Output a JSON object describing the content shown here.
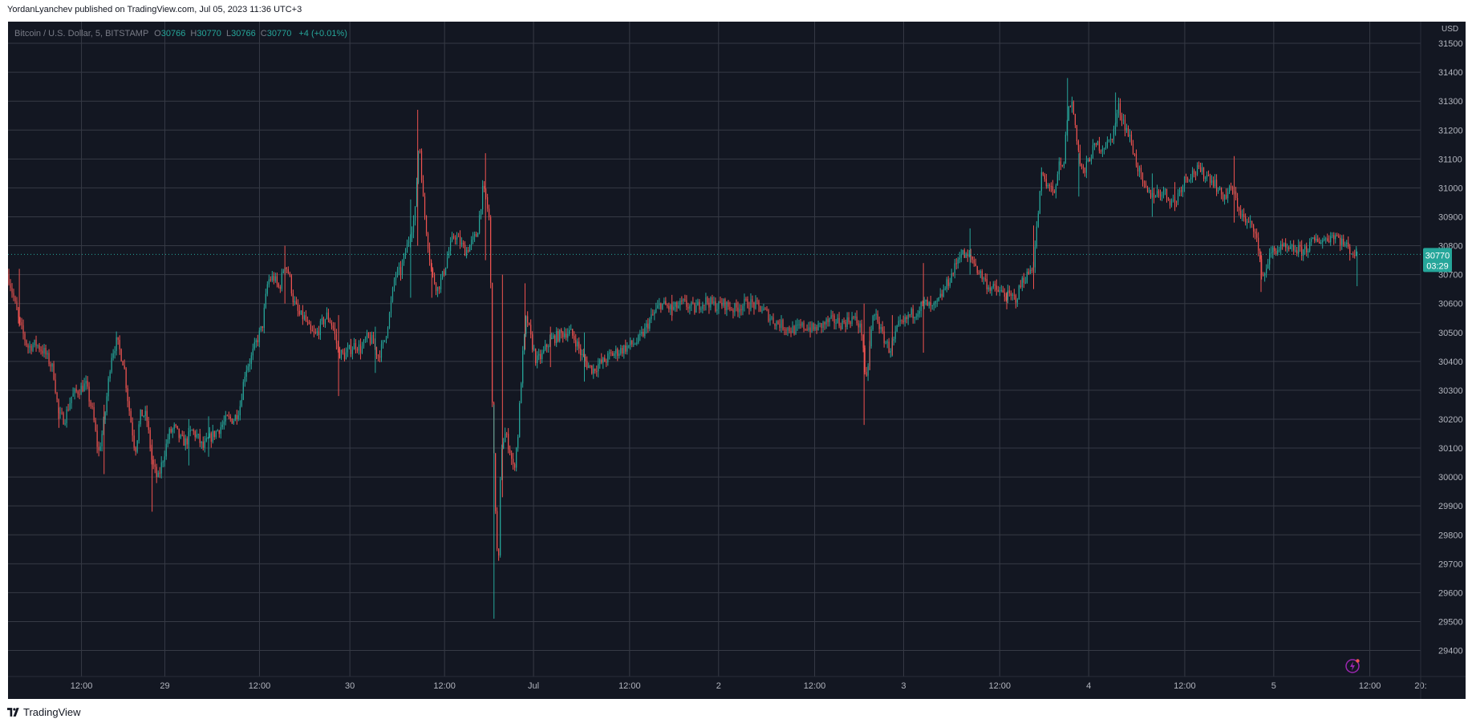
{
  "header": {
    "published": "YordanLyanchev published on TradingView.com, Jul 05, 2023 11:36 UTC+3"
  },
  "legend": {
    "symbol": "Bitcoin / U.S. Dollar, 5, BITSTAMP",
    "o_label": "O",
    "o_value": "30766",
    "h_label": "H",
    "h_value": "30770",
    "l_label": "L",
    "l_value": "30766",
    "c_label": "C",
    "c_value": "30770",
    "change": "+4 (+0.01%)"
  },
  "price_tag": {
    "price": "30770",
    "countdown": "03:29"
  },
  "footer": {
    "brand": "TradingView"
  },
  "colors": {
    "background": "#131722",
    "up": "#26a69a",
    "down": "#ef5350",
    "grid": "#363a45",
    "axis_text": "#b2b5be"
  },
  "chart_data": {
    "type": "candlestick",
    "currency": "USD",
    "ylim": [
      29310,
      31575
    ],
    "y_ticks": [
      29400,
      29500,
      29600,
      29700,
      29800,
      29900,
      30000,
      30100,
      30200,
      30300,
      30400,
      30500,
      30600,
      30700,
      30800,
      30900,
      31000,
      31100,
      31200,
      31300,
      31400,
      31500
    ],
    "x_ticks": [
      "12:00",
      "29",
      "12:00",
      "30",
      "12:00",
      "Jul",
      "12:00",
      "2",
      "12:00",
      "3",
      "12:00",
      "4",
      "12:00",
      "5",
      "12:00",
      "20:"
    ],
    "x_tick_pos": [
      0.052,
      0.111,
      0.178,
      0.242,
      0.309,
      0.372,
      0.44,
      0.503,
      0.571,
      0.634,
      0.702,
      0.765,
      0.833,
      0.896,
      0.964,
      1.0
    ],
    "last_price": 30770,
    "path": [
      [
        0.0,
        30700
      ],
      [
        0.004,
        30620
      ],
      [
        0.008,
        30530
      ],
      [
        0.014,
        30450
      ],
      [
        0.02,
        30460
      ],
      [
        0.026,
        30430
      ],
      [
        0.032,
        30370
      ],
      [
        0.036,
        30210
      ],
      [
        0.04,
        30200
      ],
      [
        0.045,
        30280
      ],
      [
        0.05,
        30300
      ],
      [
        0.055,
        30320
      ],
      [
        0.06,
        30220
      ],
      [
        0.064,
        30080
      ],
      [
        0.068,
        30190
      ],
      [
        0.073,
        30420
      ],
      [
        0.077,
        30470
      ],
      [
        0.082,
        30390
      ],
      [
        0.085,
        30260
      ],
      [
        0.09,
        30090
      ],
      [
        0.094,
        30220
      ],
      [
        0.098,
        30210
      ],
      [
        0.102,
        30050
      ],
      [
        0.106,
        29990
      ],
      [
        0.11,
        30070
      ],
      [
        0.114,
        30150
      ],
      [
        0.118,
        30170
      ],
      [
        0.122,
        30130
      ],
      [
        0.126,
        30120
      ],
      [
        0.13,
        30160
      ],
      [
        0.134,
        30140
      ],
      [
        0.138,
        30100
      ],
      [
        0.142,
        30130
      ],
      [
        0.146,
        30150
      ],
      [
        0.15,
        30170
      ],
      [
        0.155,
        30200
      ],
      [
        0.16,
        30200
      ],
      [
        0.164,
        30240
      ],
      [
        0.168,
        30370
      ],
      [
        0.172,
        30410
      ],
      [
        0.176,
        30470
      ],
      [
        0.18,
        30520
      ],
      [
        0.184,
        30680
      ],
      [
        0.188,
        30690
      ],
      [
        0.192,
        30650
      ],
      [
        0.196,
        30740
      ],
      [
        0.199,
        30700
      ],
      [
        0.202,
        30610
      ],
      [
        0.206,
        30560
      ],
      [
        0.21,
        30550
      ],
      [
        0.214,
        30500
      ],
      [
        0.218,
        30490
      ],
      [
        0.222,
        30530
      ],
      [
        0.226,
        30560
      ],
      [
        0.23,
        30520
      ],
      [
        0.234,
        30430
      ],
      [
        0.238,
        30420
      ],
      [
        0.242,
        30440
      ],
      [
        0.246,
        30460
      ],
      [
        0.25,
        30440
      ],
      [
        0.254,
        30480
      ],
      [
        0.258,
        30470
      ],
      [
        0.262,
        30420
      ],
      [
        0.266,
        30460
      ],
      [
        0.27,
        30560
      ],
      [
        0.274,
        30700
      ],
      [
        0.278,
        30710
      ],
      [
        0.282,
        30790
      ],
      [
        0.285,
        30850
      ],
      [
        0.288,
        30900
      ],
      [
        0.291,
        31180
      ],
      [
        0.294,
        30950
      ],
      [
        0.297,
        30820
      ],
      [
        0.3,
        30700
      ],
      [
        0.304,
        30650
      ],
      [
        0.308,
        30700
      ],
      [
        0.312,
        30780
      ],
      [
        0.316,
        30840
      ],
      [
        0.32,
        30810
      ],
      [
        0.324,
        30780
      ],
      [
        0.328,
        30810
      ],
      [
        0.332,
        30840
      ],
      [
        0.336,
        30990
      ],
      [
        0.338,
        30970
      ],
      [
        0.341,
        30880
      ],
      [
        0.343,
        30200
      ],
      [
        0.345,
        29900
      ],
      [
        0.347,
        29640
      ],
      [
        0.349,
        30100
      ],
      [
        0.352,
        30150
      ],
      [
        0.355,
        30100
      ],
      [
        0.358,
        30020
      ],
      [
        0.361,
        30150
      ],
      [
        0.364,
        30400
      ],
      [
        0.367,
        30560
      ],
      [
        0.37,
        30480
      ],
      [
        0.374,
        30400
      ],
      [
        0.378,
        30420
      ],
      [
        0.382,
        30460
      ],
      [
        0.386,
        30480
      ],
      [
        0.39,
        30490
      ],
      [
        0.394,
        30500
      ],
      [
        0.398,
        30500
      ],
      [
        0.402,
        30470
      ],
      [
        0.406,
        30420
      ],
      [
        0.41,
        30390
      ],
      [
        0.414,
        30370
      ],
      [
        0.418,
        30390
      ],
      [
        0.422,
        30400
      ],
      [
        0.426,
        30420
      ],
      [
        0.43,
        30430
      ],
      [
        0.434,
        30440
      ],
      [
        0.438,
        30450
      ],
      [
        0.442,
        30460
      ],
      [
        0.446,
        30470
      ],
      [
        0.45,
        30500
      ],
      [
        0.454,
        30540
      ],
      [
        0.458,
        30570
      ],
      [
        0.462,
        30600
      ],
      [
        0.466,
        30590
      ],
      [
        0.47,
        30580
      ],
      [
        0.474,
        30590
      ],
      [
        0.478,
        30600
      ],
      [
        0.482,
        30590
      ],
      [
        0.486,
        30580
      ],
      [
        0.49,
        30600
      ],
      [
        0.494,
        30610
      ],
      [
        0.498,
        30600
      ],
      [
        0.502,
        30590
      ],
      [
        0.506,
        30600
      ],
      [
        0.51,
        30590
      ],
      [
        0.514,
        30580
      ],
      [
        0.518,
        30590
      ],
      [
        0.522,
        30600
      ],
      [
        0.526,
        30600
      ],
      [
        0.53,
        30590
      ],
      [
        0.534,
        30580
      ],
      [
        0.538,
        30560
      ],
      [
        0.542,
        30540
      ],
      [
        0.546,
        30530
      ],
      [
        0.55,
        30520
      ],
      [
        0.554,
        30510
      ],
      [
        0.558,
        30510
      ],
      [
        0.562,
        30520
      ],
      [
        0.566,
        30520
      ],
      [
        0.57,
        30510
      ],
      [
        0.574,
        30520
      ],
      [
        0.578,
        30530
      ],
      [
        0.582,
        30540
      ],
      [
        0.586,
        30540
      ],
      [
        0.59,
        30530
      ],
      [
        0.594,
        30540
      ],
      [
        0.598,
        30550
      ],
      [
        0.602,
        30530
      ],
      [
        0.605,
        30490
      ],
      [
        0.607,
        30300
      ],
      [
        0.609,
        30400
      ],
      [
        0.612,
        30550
      ],
      [
        0.615,
        30560
      ],
      [
        0.618,
        30500
      ],
      [
        0.621,
        30470
      ],
      [
        0.624,
        30440
      ],
      [
        0.627,
        30470
      ],
      [
        0.63,
        30520
      ],
      [
        0.634,
        30530
      ],
      [
        0.638,
        30560
      ],
      [
        0.642,
        30570
      ],
      [
        0.646,
        30590
      ],
      [
        0.65,
        30600
      ],
      [
        0.654,
        30580
      ],
      [
        0.658,
        30600
      ],
      [
        0.662,
        30640
      ],
      [
        0.666,
        30680
      ],
      [
        0.67,
        30720
      ],
      [
        0.674,
        30780
      ],
      [
        0.678,
        30760
      ],
      [
        0.682,
        30760
      ],
      [
        0.686,
        30720
      ],
      [
        0.69,
        30690
      ],
      [
        0.694,
        30660
      ],
      [
        0.698,
        30650
      ],
      [
        0.702,
        30640
      ],
      [
        0.706,
        30630
      ],
      [
        0.71,
        30620
      ],
      [
        0.714,
        30620
      ],
      [
        0.718,
        30680
      ],
      [
        0.722,
        30700
      ],
      [
        0.726,
        30740
      ],
      [
        0.729,
        30900
      ],
      [
        0.732,
        31060
      ],
      [
        0.735,
        31000
      ],
      [
        0.738,
        31020
      ],
      [
        0.741,
        30960
      ],
      [
        0.744,
        31080
      ],
      [
        0.747,
        31060
      ],
      [
        0.75,
        31260
      ],
      [
        0.753,
        31300
      ],
      [
        0.756,
        31200
      ],
      [
        0.759,
        31080
      ],
      [
        0.762,
        31050
      ],
      [
        0.765,
        31100
      ],
      [
        0.768,
        31130
      ],
      [
        0.771,
        31150
      ],
      [
        0.774,
        31140
      ],
      [
        0.777,
        31150
      ],
      [
        0.78,
        31160
      ],
      [
        0.783,
        31200
      ],
      [
        0.786,
        31280
      ],
      [
        0.789,
        31240
      ],
      [
        0.792,
        31200
      ],
      [
        0.795,
        31160
      ],
      [
        0.798,
        31100
      ],
      [
        0.801,
        31050
      ],
      [
        0.804,
        31000
      ],
      [
        0.807,
        30980
      ],
      [
        0.81,
        30980
      ],
      [
        0.814,
        30980
      ],
      [
        0.818,
        30990
      ],
      [
        0.822,
        30960
      ],
      [
        0.826,
        30950
      ],
      [
        0.83,
        31000
      ],
      [
        0.834,
        31040
      ],
      [
        0.838,
        31050
      ],
      [
        0.842,
        31060
      ],
      [
        0.846,
        31050
      ],
      [
        0.85,
        31040
      ],
      [
        0.854,
        31020
      ],
      [
        0.858,
        30980
      ],
      [
        0.862,
        30970
      ],
      [
        0.866,
        31000
      ],
      [
        0.869,
        30960
      ],
      [
        0.872,
        30920
      ],
      [
        0.876,
        30880
      ],
      [
        0.88,
        30870
      ],
      [
        0.883,
        30860
      ],
      [
        0.886,
        30740
      ],
      [
        0.889,
        30690
      ],
      [
        0.892,
        30750
      ],
      [
        0.895,
        30780
      ],
      [
        0.899,
        30790
      ],
      [
        0.903,
        30790
      ],
      [
        0.907,
        30780
      ],
      [
        0.911,
        30790
      ],
      [
        0.915,
        30780
      ],
      [
        0.919,
        30790
      ],
      [
        0.923,
        30810
      ],
      [
        0.927,
        30820
      ],
      [
        0.931,
        30820
      ],
      [
        0.935,
        30830
      ],
      [
        0.939,
        30840
      ],
      [
        0.943,
        30820
      ],
      [
        0.947,
        30800
      ],
      [
        0.951,
        30780
      ],
      [
        0.955,
        30770
      ]
    ],
    "spikes": [
      [
        0.008,
        30720,
        30520
      ],
      [
        0.036,
        30240,
        30170
      ],
      [
        0.068,
        30250,
        30010
      ],
      [
        0.102,
        30130,
        29880
      ],
      [
        0.128,
        30200,
        30040
      ],
      [
        0.142,
        30210,
        30070
      ],
      [
        0.196,
        30800,
        30600
      ],
      [
        0.234,
        30560,
        30280
      ],
      [
        0.26,
        30520,
        30360
      ],
      [
        0.285,
        30960,
        30620
      ],
      [
        0.29,
        31270,
        30800
      ],
      [
        0.3,
        30740,
        30620
      ],
      [
        0.338,
        31120,
        30750
      ],
      [
        0.344,
        30250,
        29510
      ],
      [
        0.35,
        30700,
        29930
      ],
      [
        0.366,
        30670,
        30440
      ],
      [
        0.384,
        30520,
        30380
      ],
      [
        0.408,
        30500,
        30330
      ],
      [
        0.47,
        30630,
        30540
      ],
      [
        0.606,
        30600,
        30180
      ],
      [
        0.61,
        30520,
        30370
      ],
      [
        0.626,
        30560,
        30420
      ],
      [
        0.648,
        30740,
        30430
      ],
      [
        0.681,
        30860,
        30700
      ],
      [
        0.707,
        30640,
        30580
      ],
      [
        0.726,
        30870,
        30650
      ],
      [
        0.75,
        31380,
        31160
      ],
      [
        0.758,
        31120,
        30970
      ],
      [
        0.784,
        31330,
        31180
      ],
      [
        0.81,
        31050,
        30900
      ],
      [
        0.826,
        31020,
        30920
      ],
      [
        0.868,
        31110,
        30880
      ],
      [
        0.887,
        30780,
        30640
      ],
      [
        0.955,
        30780,
        30660
      ]
    ]
  }
}
